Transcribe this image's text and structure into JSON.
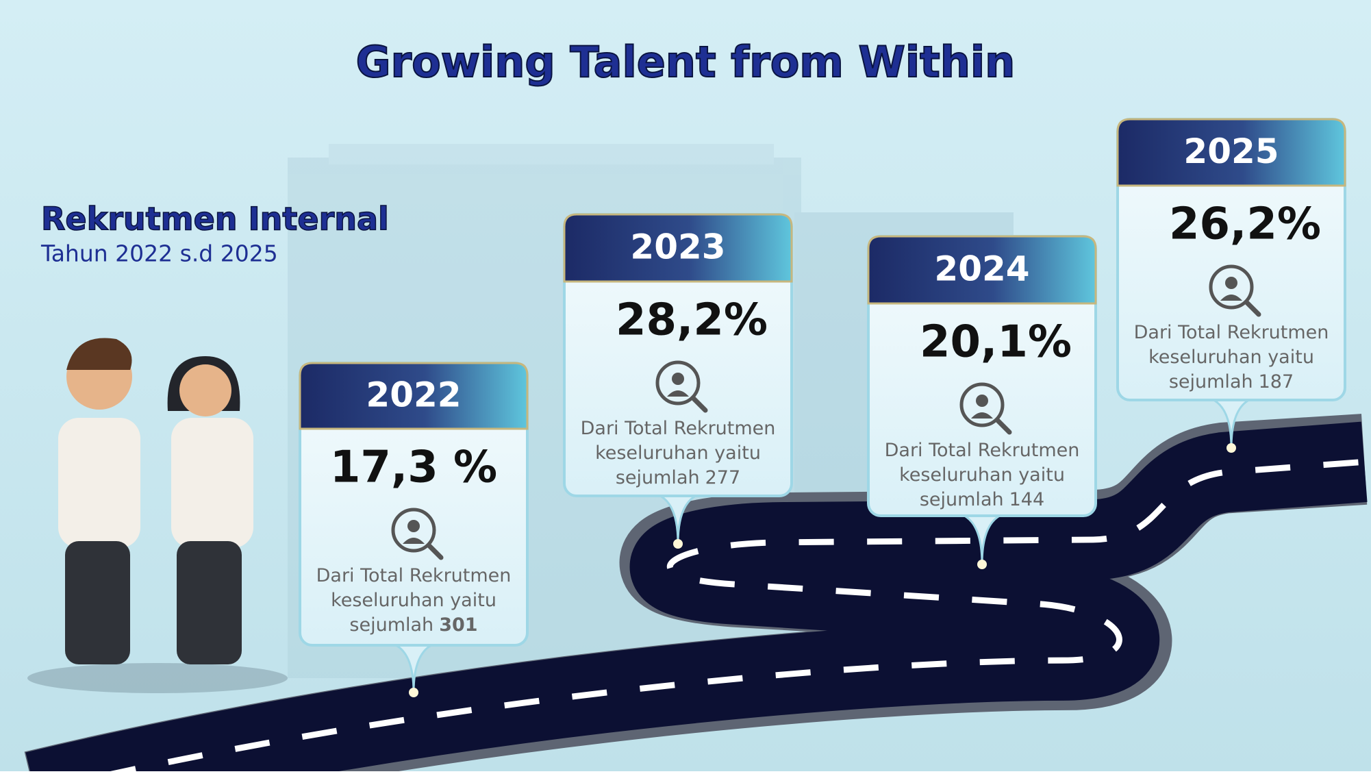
{
  "header": {
    "title": "Growing Talent from Within"
  },
  "section": {
    "title": "Rekrutmen Internal",
    "subtitle": "Tahun 2022 s.d 2025"
  },
  "cards": [
    {
      "year": "2022",
      "percent": "17,3 %",
      "desc_lines": [
        "Dari Total Rekrutmen",
        "keseluruhan yaitu",
        "sejumlah"
      ],
      "total": "301"
    },
    {
      "year": "2023",
      "percent": "28,2%",
      "desc_lines": [
        "Dari Total Rekrutmen",
        "keseluruhan yaitu",
        "sejumlah"
      ],
      "total": "277"
    },
    {
      "year": "2024",
      "percent": "20,1%",
      "desc_lines": [
        "Dari Total Rekrutmen",
        "keseluruhan yaitu",
        "sejumlah"
      ],
      "total": "144"
    },
    {
      "year": "2025",
      "percent": "26,2%",
      "desc_lines": [
        "Dari Total Rekrutmen",
        "keseluruhan yaitu",
        "sejumlah"
      ],
      "total": "187"
    }
  ]
}
